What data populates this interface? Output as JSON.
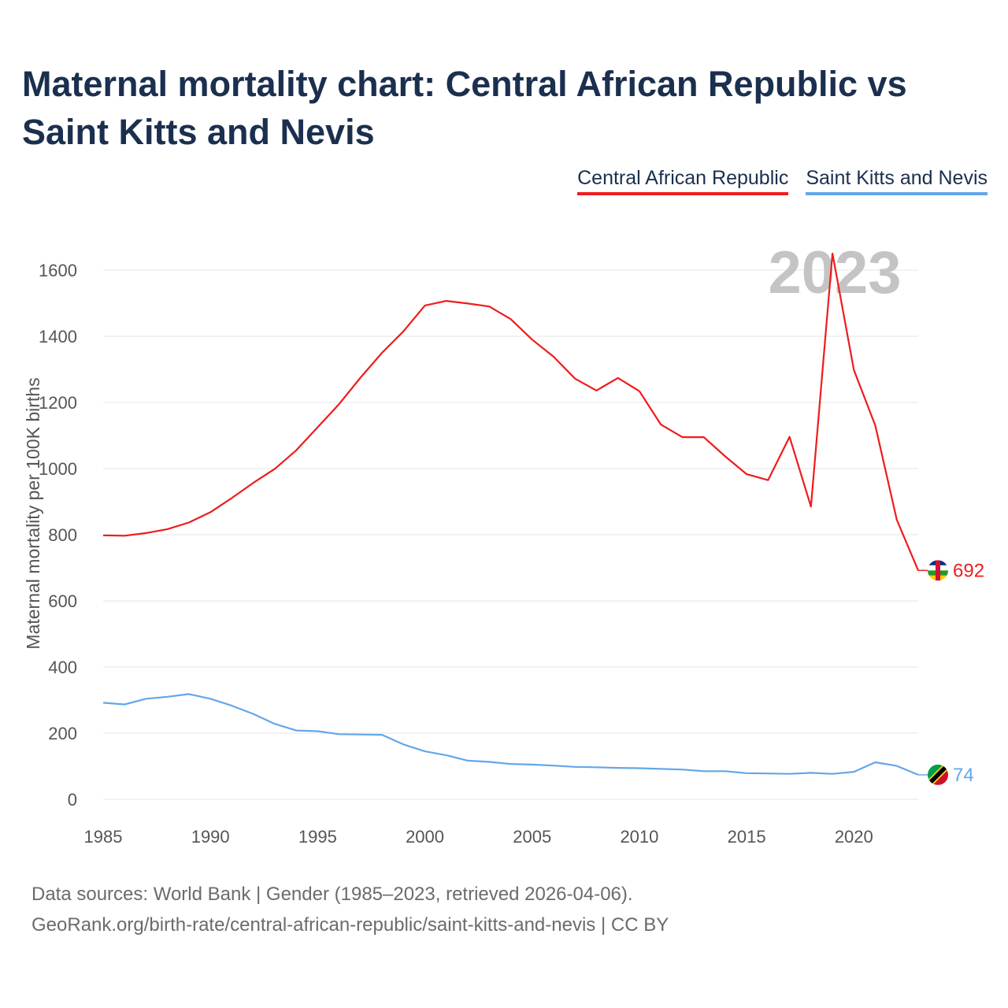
{
  "title": "Maternal mortality chart: Central African Republic vs Saint Kitts and Nevis",
  "legend": {
    "car": "Central African Republic",
    "skn": "Saint Kitts and Nevis"
  },
  "year_label": "2023",
  "footer": {
    "sources": "Data sources: World Bank | Gender (1985–2023, retrieved 2026-04-06).",
    "url": "GeoRank.org/birth-rate/central-african-republic/saint-kitts-and-nevis | CC BY"
  },
  "colors": {
    "car": "#ee1c1c",
    "skn": "#63a7e8",
    "text": "#1b2f4f"
  },
  "chart_data": {
    "type": "line",
    "title": "Maternal mortality chart: Central African Republic vs Saint Kitts and Nevis",
    "ylabel": "Maternal mortality per 100K births",
    "xlabel": "",
    "xlim": [
      1985,
      2023
    ],
    "ylim": [
      0,
      1650
    ],
    "x_ticks": [
      1985,
      1990,
      1995,
      2000,
      2005,
      2010,
      2015,
      2020
    ],
    "y_ticks": [
      0,
      200,
      400,
      600,
      800,
      1000,
      1200,
      1400,
      1600
    ],
    "legend_position": "top-right",
    "x": [
      1985,
      1986,
      1987,
      1988,
      1989,
      1990,
      1991,
      1992,
      1993,
      1994,
      1995,
      1996,
      1997,
      1998,
      1999,
      2000,
      2001,
      2002,
      2003,
      2004,
      2005,
      2006,
      2007,
      2008,
      2009,
      2010,
      2011,
      2012,
      2013,
      2014,
      2015,
      2016,
      2017,
      2018,
      2019,
      2020,
      2021,
      2022,
      2023
    ],
    "series": [
      {
        "name": "Central African Republic",
        "key": "car",
        "end_label": "692",
        "values": [
          798,
          797,
          805,
          817,
          837,
          868,
          911,
          957,
          999,
          1055,
          1125,
          1195,
          1275,
          1350,
          1415,
          1493,
          1507,
          1499,
          1490,
          1452,
          1390,
          1338,
          1272,
          1236,
          1274,
          1234,
          1133,
          1095,
          1095,
          1037,
          983,
          965,
          1096,
          885,
          1650,
          1298,
          1130,
          845,
          692
        ]
      },
      {
        "name": "Saint Kitts and Nevis",
        "key": "skn",
        "end_label": "74",
        "values": [
          292,
          287,
          304,
          310,
          318,
          304,
          283,
          258,
          228,
          208,
          206,
          197,
          196,
          195,
          166,
          145,
          133,
          117,
          113,
          107,
          105,
          102,
          98,
          97,
          95,
          94,
          92,
          90,
          85,
          85,
          79,
          78,
          77,
          80,
          77,
          83,
          112,
          101,
          74
        ]
      }
    ]
  }
}
